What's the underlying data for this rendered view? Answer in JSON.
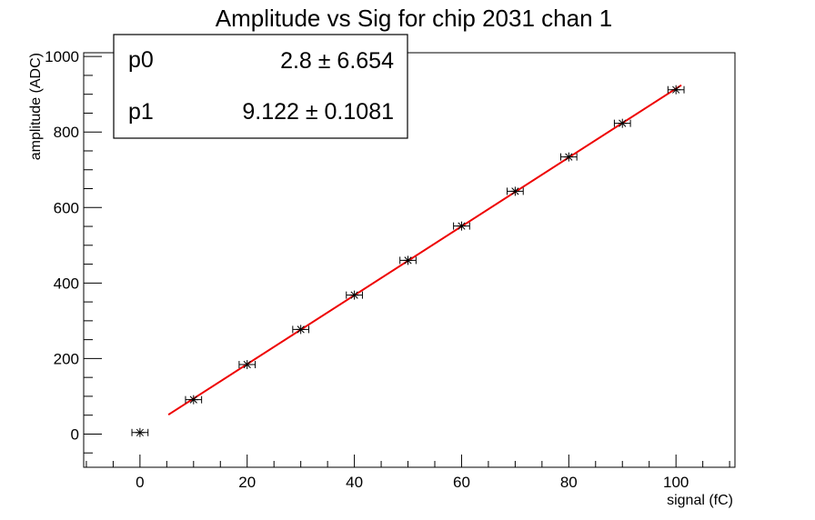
{
  "chart_data": {
    "type": "scatter",
    "title": "Amplitude vs Sig for chip 2031 chan 1",
    "xlabel": "signal (fC)",
    "ylabel": "amplitude (ADC)",
    "xlim": [
      -10.5,
      111
    ],
    "ylim": [
      -88,
      1010
    ],
    "x_ticks": [
      0,
      20,
      40,
      60,
      80,
      100
    ],
    "y_ticks": [
      0,
      200,
      400,
      600,
      800,
      1000
    ],
    "x_minor_step": 5,
    "y_minor_step": 50,
    "grid": false,
    "legend": "none",
    "series": [
      {
        "marker": "star",
        "x": [
          0,
          10,
          20,
          30,
          40,
          50,
          60,
          70,
          80,
          90,
          100
        ],
        "y": [
          4,
          91,
          184,
          277,
          368,
          460,
          551,
          643,
          734,
          823,
          912
        ],
        "x_err": 1.5
      }
    ],
    "fit": {
      "color": "#ee0000",
      "p0": 2.8,
      "p1": 9.122,
      "x_range": [
        5.3,
        101
      ]
    },
    "stats_box": {
      "rows": [
        {
          "name": "p0",
          "value": "2.8 ± 6.654"
        },
        {
          "name": "p1",
          "value": "9.122 ± 0.1081"
        }
      ]
    }
  }
}
